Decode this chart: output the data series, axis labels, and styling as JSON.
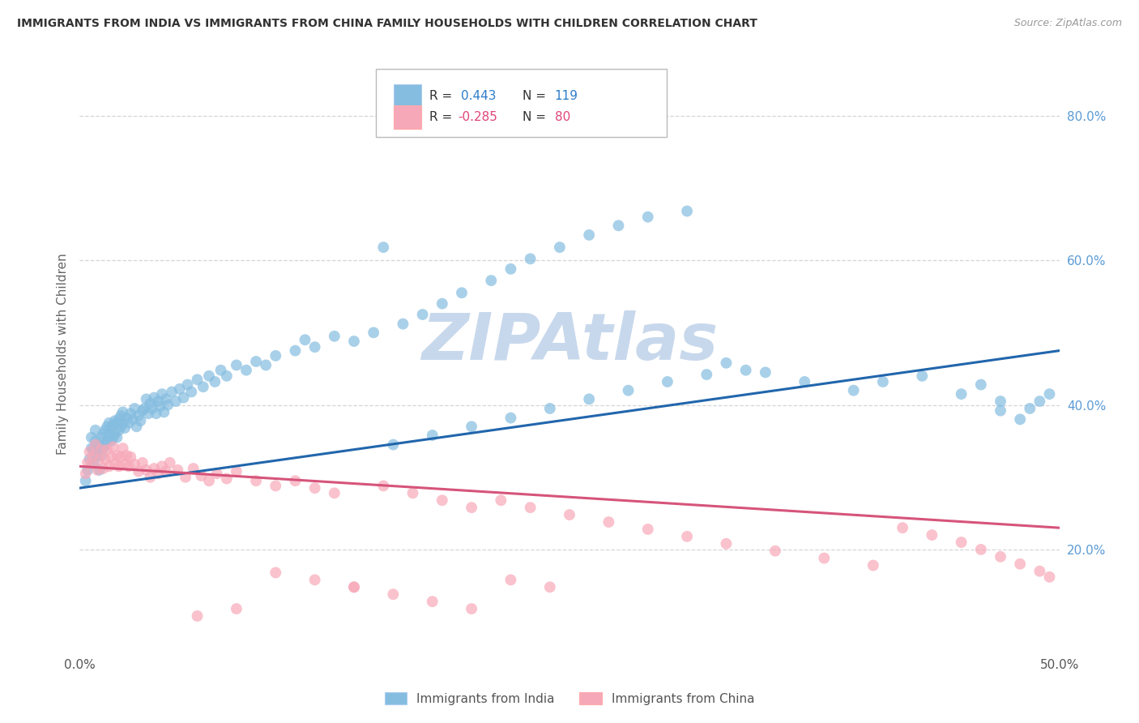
{
  "title": "IMMIGRANTS FROM INDIA VS IMMIGRANTS FROM CHINA FAMILY HOUSEHOLDS WITH CHILDREN CORRELATION CHART",
  "source": "Source: ZipAtlas.com",
  "ylabel": "Family Households with Children",
  "ytick_labels": [
    "20.0%",
    "40.0%",
    "60.0%",
    "80.0%"
  ],
  "ytick_values": [
    0.2,
    0.4,
    0.6,
    0.8
  ],
  "xlim": [
    0.0,
    0.5
  ],
  "ylim": [
    0.06,
    0.88
  ],
  "india_R": 0.443,
  "india_N": 119,
  "china_R": -0.285,
  "china_N": 80,
  "india_color": "#85bde0",
  "china_color": "#f7a8b8",
  "india_line_color": "#2166ac",
  "china_line_color": "#d6547a",
  "background_color": "#ffffff",
  "grid_color": "#cccccc",
  "title_color": "#333333",
  "source_color": "#999999",
  "watermark_color": "#c8d8ec",
  "india_line_x": [
    0.0,
    0.5
  ],
  "india_line_y": [
    0.285,
    0.475
  ],
  "china_line_x": [
    0.0,
    0.5
  ],
  "china_line_y": [
    0.315,
    0.23
  ],
  "india_scatter_x": [
    0.003,
    0.004,
    0.005,
    0.006,
    0.006,
    0.007,
    0.007,
    0.008,
    0.008,
    0.009,
    0.01,
    0.01,
    0.011,
    0.011,
    0.012,
    0.012,
    0.013,
    0.013,
    0.014,
    0.014,
    0.015,
    0.015,
    0.016,
    0.016,
    0.017,
    0.017,
    0.018,
    0.018,
    0.019,
    0.019,
    0.02,
    0.02,
    0.021,
    0.021,
    0.022,
    0.022,
    0.023,
    0.024,
    0.025,
    0.026,
    0.027,
    0.028,
    0.029,
    0.03,
    0.031,
    0.032,
    0.033,
    0.034,
    0.035,
    0.036,
    0.037,
    0.038,
    0.039,
    0.04,
    0.041,
    0.042,
    0.043,
    0.044,
    0.045,
    0.047,
    0.049,
    0.051,
    0.053,
    0.055,
    0.057,
    0.06,
    0.063,
    0.066,
    0.069,
    0.072,
    0.075,
    0.08,
    0.085,
    0.09,
    0.095,
    0.1,
    0.11,
    0.115,
    0.12,
    0.13,
    0.14,
    0.15,
    0.155,
    0.165,
    0.175,
    0.185,
    0.195,
    0.21,
    0.22,
    0.23,
    0.245,
    0.26,
    0.275,
    0.29,
    0.31,
    0.33,
    0.35,
    0.37,
    0.395,
    0.41,
    0.43,
    0.45,
    0.46,
    0.47,
    0.47,
    0.48,
    0.485,
    0.49,
    0.495,
    0.34,
    0.32,
    0.3,
    0.28,
    0.26,
    0.24,
    0.22,
    0.2,
    0.18,
    0.16
  ],
  "india_scatter_y": [
    0.295,
    0.31,
    0.325,
    0.34,
    0.355,
    0.32,
    0.338,
    0.35,
    0.365,
    0.33,
    0.31,
    0.345,
    0.33,
    0.355,
    0.34,
    0.36,
    0.345,
    0.365,
    0.35,
    0.37,
    0.36,
    0.375,
    0.35,
    0.368,
    0.355,
    0.372,
    0.36,
    0.378,
    0.355,
    0.375,
    0.365,
    0.38,
    0.37,
    0.385,
    0.375,
    0.39,
    0.368,
    0.382,
    0.375,
    0.388,
    0.38,
    0.395,
    0.37,
    0.385,
    0.378,
    0.392,
    0.395,
    0.408,
    0.388,
    0.402,
    0.395,
    0.41,
    0.388,
    0.405,
    0.398,
    0.415,
    0.39,
    0.408,
    0.4,
    0.418,
    0.405,
    0.422,
    0.41,
    0.428,
    0.418,
    0.435,
    0.425,
    0.44,
    0.432,
    0.448,
    0.44,
    0.455,
    0.448,
    0.46,
    0.455,
    0.468,
    0.475,
    0.49,
    0.48,
    0.495,
    0.488,
    0.5,
    0.618,
    0.512,
    0.525,
    0.54,
    0.555,
    0.572,
    0.588,
    0.602,
    0.618,
    0.635,
    0.648,
    0.66,
    0.668,
    0.458,
    0.445,
    0.432,
    0.42,
    0.432,
    0.44,
    0.415,
    0.428,
    0.405,
    0.392,
    0.38,
    0.395,
    0.405,
    0.415,
    0.448,
    0.442,
    0.432,
    0.42,
    0.408,
    0.395,
    0.382,
    0.37,
    0.358,
    0.345
  ],
  "china_scatter_x": [
    0.003,
    0.004,
    0.005,
    0.006,
    0.007,
    0.008,
    0.009,
    0.01,
    0.011,
    0.012,
    0.013,
    0.014,
    0.015,
    0.016,
    0.017,
    0.018,
    0.019,
    0.02,
    0.021,
    0.022,
    0.023,
    0.024,
    0.025,
    0.026,
    0.028,
    0.03,
    0.032,
    0.034,
    0.036,
    0.038,
    0.04,
    0.042,
    0.044,
    0.046,
    0.05,
    0.054,
    0.058,
    0.062,
    0.066,
    0.07,
    0.075,
    0.08,
    0.09,
    0.1,
    0.11,
    0.12,
    0.13,
    0.14,
    0.155,
    0.17,
    0.185,
    0.2,
    0.215,
    0.23,
    0.25,
    0.27,
    0.29,
    0.31,
    0.33,
    0.355,
    0.38,
    0.405,
    0.42,
    0.435,
    0.45,
    0.46,
    0.47,
    0.48,
    0.49,
    0.495,
    0.06,
    0.08,
    0.1,
    0.12,
    0.14,
    0.16,
    0.18,
    0.2,
    0.22,
    0.24
  ],
  "china_scatter_y": [
    0.305,
    0.32,
    0.335,
    0.318,
    0.33,
    0.345,
    0.31,
    0.325,
    0.338,
    0.312,
    0.325,
    0.338,
    0.315,
    0.328,
    0.342,
    0.318,
    0.33,
    0.315,
    0.328,
    0.34,
    0.318,
    0.33,
    0.315,
    0.328,
    0.318,
    0.308,
    0.32,
    0.31,
    0.3,
    0.312,
    0.305,
    0.315,
    0.308,
    0.32,
    0.31,
    0.3,
    0.312,
    0.302,
    0.295,
    0.305,
    0.298,
    0.308,
    0.295,
    0.288,
    0.295,
    0.285,
    0.278,
    0.148,
    0.288,
    0.278,
    0.268,
    0.258,
    0.268,
    0.258,
    0.248,
    0.238,
    0.228,
    0.218,
    0.208,
    0.198,
    0.188,
    0.178,
    0.23,
    0.22,
    0.21,
    0.2,
    0.19,
    0.18,
    0.17,
    0.162,
    0.108,
    0.118,
    0.168,
    0.158,
    0.148,
    0.138,
    0.128,
    0.118,
    0.158,
    0.148
  ]
}
